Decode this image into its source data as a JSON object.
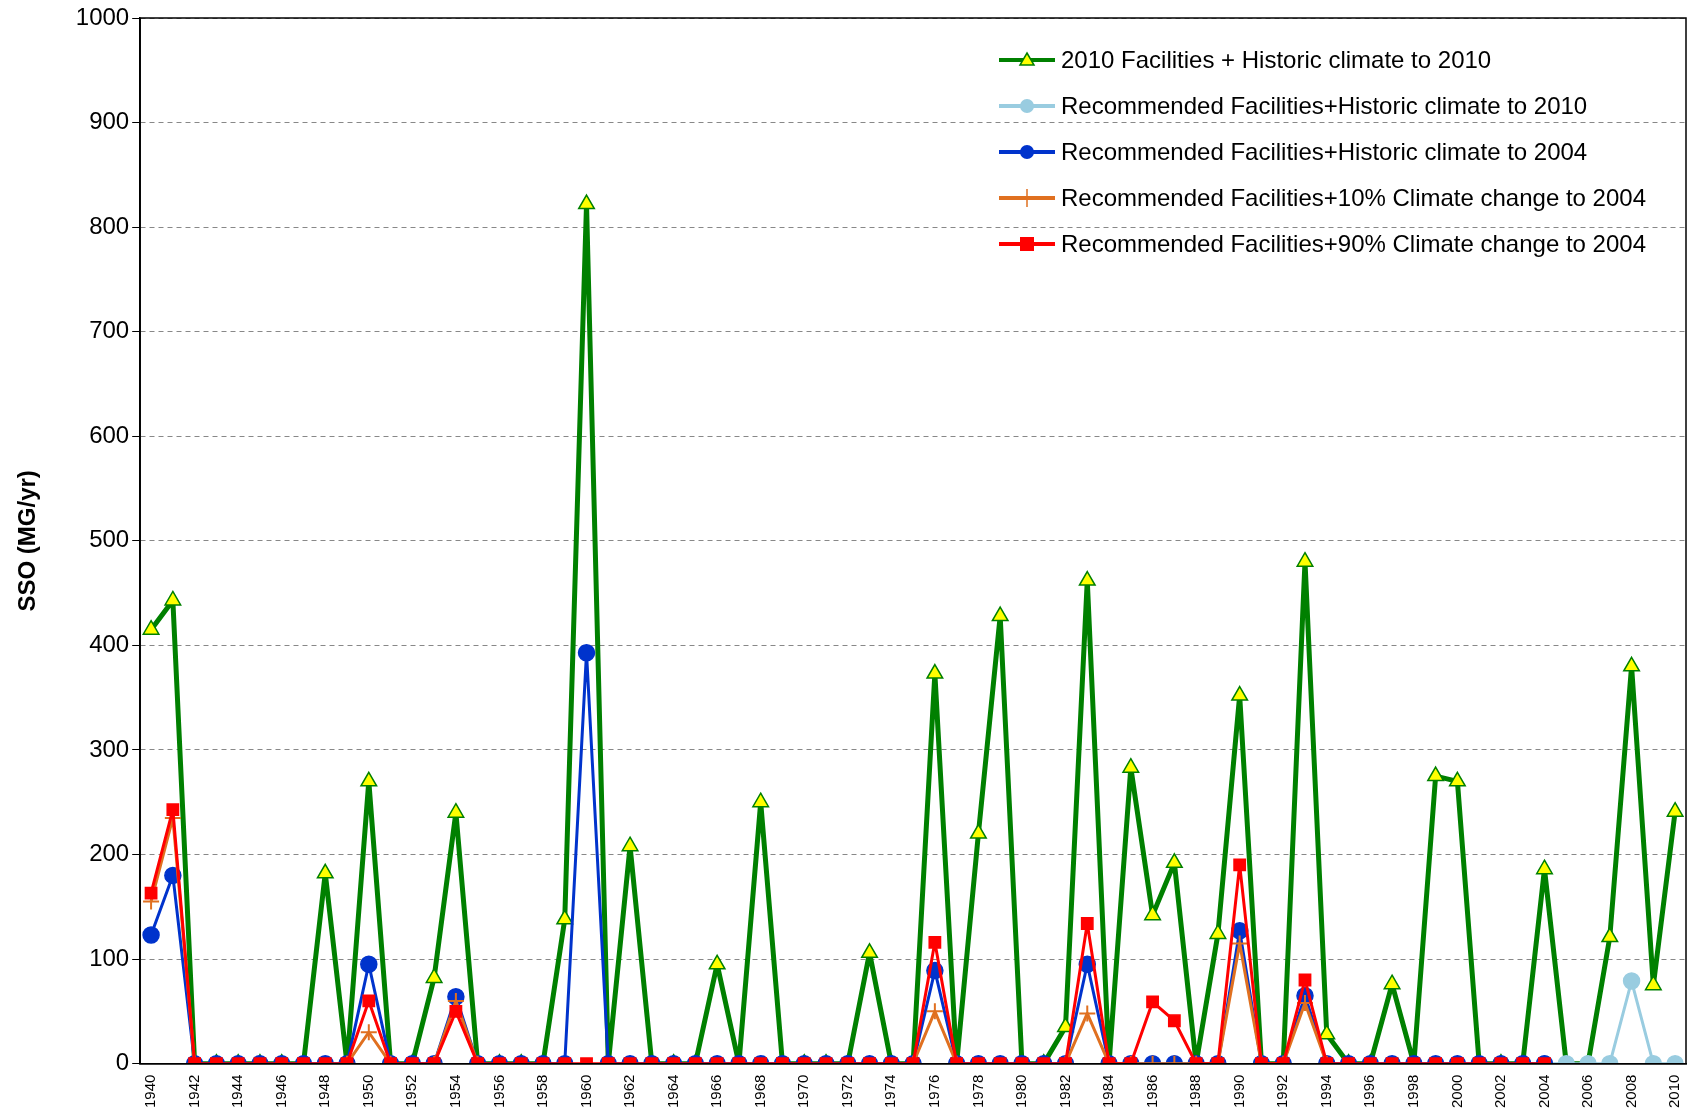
{
  "chart_data": {
    "type": "line",
    "ylabel": "SSO (MG/yr)",
    "categories": [
      "1940",
      null,
      "1942",
      null,
      "1944",
      null,
      "1946",
      null,
      "1948",
      null,
      "1950",
      null,
      "1952",
      null,
      "1954",
      null,
      "1956",
      null,
      "1958",
      null,
      "1960",
      null,
      "1962",
      null,
      "1964",
      null,
      "1966",
      null,
      "1968",
      null,
      "1970",
      null,
      "1972",
      null,
      "1974",
      null,
      "1976",
      null,
      "1978",
      null,
      "1980",
      null,
      "1982",
      null,
      "1984",
      null,
      "1986",
      null,
      "1988",
      null,
      "1990",
      null,
      "1992",
      null,
      "1994",
      null,
      "1996",
      null,
      "1998",
      null,
      "2000",
      null,
      "2002",
      null,
      "2004",
      null,
      "2006",
      null,
      "2008",
      null,
      "2010"
    ],
    "ylim": [
      0,
      1000
    ],
    "yticks": [
      0,
      100,
      200,
      300,
      400,
      500,
      600,
      700,
      800,
      900,
      1000
    ],
    "grid": "y",
    "legend": "top right",
    "line_style": "solid",
    "series": [
      {
        "name": "2010 Facilities + Historic climate to 2010",
        "color": "#008000",
        "marker": "triangle",
        "values": [
          415,
          443,
          0,
          0,
          0,
          0,
          0,
          0,
          182,
          0,
          270,
          0,
          0,
          82,
          240,
          0,
          0,
          0,
          0,
          138,
          822,
          0,
          208,
          0,
          0,
          0,
          95,
          0,
          250,
          0,
          0,
          0,
          0,
          106,
          0,
          0,
          373,
          0,
          220,
          428,
          0,
          0,
          35,
          462,
          0,
          283,
          142,
          192,
          0,
          124,
          352,
          0,
          0,
          480,
          28,
          0,
          0,
          76,
          0,
          275,
          270,
          0,
          0,
          0,
          186,
          0,
          0,
          121,
          380,
          75,
          241
        ]
      },
      {
        "name": "Recommended Facilities+Historic  climate to 2010",
        "color": "#99cce0",
        "marker": "circle",
        "values": [
          null,
          null,
          null,
          null,
          null,
          null,
          null,
          null,
          null,
          null,
          null,
          null,
          null,
          null,
          null,
          null,
          null,
          null,
          null,
          null,
          null,
          null,
          null,
          null,
          null,
          null,
          null,
          null,
          null,
          null,
          null,
          null,
          null,
          null,
          null,
          null,
          null,
          null,
          null,
          null,
          null,
          null,
          null,
          null,
          null,
          null,
          null,
          null,
          null,
          null,
          null,
          null,
          null,
          null,
          null,
          null,
          null,
          null,
          null,
          null,
          null,
          null,
          null,
          null,
          0,
          0,
          0,
          0,
          79,
          0,
          0
        ]
      },
      {
        "name": "Recommended Facilities+Historic  climate to 2004",
        "color": "#0033cc",
        "marker": "circle",
        "values": [
          123,
          180,
          0,
          0,
          0,
          0,
          0,
          0,
          0,
          0,
          95,
          0,
          0,
          0,
          64,
          0,
          0,
          0,
          0,
          0,
          393,
          0,
          0,
          0,
          0,
          0,
          0,
          0,
          0,
          0,
          0,
          0,
          0,
          0,
          0,
          0,
          89,
          0,
          0,
          0,
          0,
          0,
          0,
          95,
          0,
          0,
          0,
          0,
          0,
          0,
          127,
          0,
          0,
          65,
          0,
          0,
          0,
          0,
          0,
          0,
          0,
          0,
          0,
          0,
          0,
          null,
          null,
          null,
          null,
          null,
          null
        ]
      },
      {
        "name": "Recommended Facilities+10% Climate change to 2004",
        "color": "#e07020",
        "marker": "cross",
        "values": [
          155,
          235,
          0,
          null,
          null,
          null,
          null,
          null,
          null,
          0,
          30,
          0,
          null,
          0,
          60,
          0,
          null,
          null,
          null,
          null,
          null,
          null,
          null,
          null,
          null,
          null,
          null,
          null,
          null,
          null,
          null,
          null,
          null,
          null,
          null,
          0,
          50,
          0,
          null,
          null,
          null,
          null,
          0,
          48,
          0,
          0,
          0,
          0,
          0,
          0,
          115,
          0,
          0,
          58,
          0,
          null,
          null,
          null,
          null,
          null,
          null,
          null,
          null,
          null,
          null,
          null,
          null,
          null,
          null,
          null,
          null
        ]
      },
      {
        "name": "Recommended Facilities+90% Climate change to 2004",
        "color": "#ff0000",
        "marker": "square",
        "values": [
          163,
          243,
          0,
          0,
          0,
          0,
          0,
          0,
          0,
          0,
          60,
          0,
          0,
          0,
          50,
          0,
          0,
          0,
          0,
          0,
          0,
          0,
          0,
          0,
          0,
          0,
          0,
          0,
          0,
          0,
          0,
          0,
          0,
          0,
          0,
          0,
          116,
          0,
          0,
          0,
          0,
          0,
          0,
          134,
          0,
          0,
          59,
          41,
          0,
          0,
          190,
          0,
          0,
          80,
          0,
          0,
          0,
          0,
          0,
          0,
          0,
          0,
          0,
          0,
          0,
          null,
          null,
          null,
          null,
          null,
          null
        ]
      }
    ]
  }
}
